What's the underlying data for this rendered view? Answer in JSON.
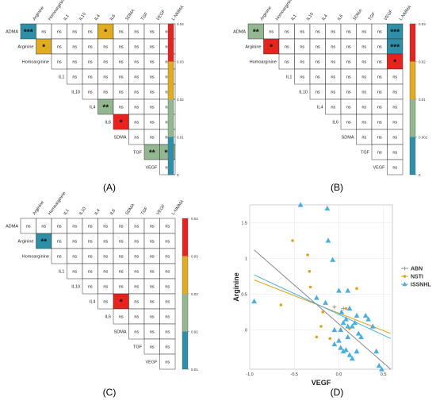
{
  "colors": {
    "teal": "#2e8fa8",
    "sage": "#93b88f",
    "gold": "#e1ad1e",
    "red": "#e8231e",
    "abn": "#8a8a8a",
    "nsti": "#e0a21c",
    "issnhl": "#4aaee0"
  },
  "panels": {
    "A": {
      "label": "(A)",
      "row_labels": [
        "ADMA",
        "Arginine",
        "Homoarginine",
        "IL1",
        "IL10",
        "IL4",
        "IL6",
        "SDMA",
        "TGF",
        "VEGF"
      ],
      "col_labels": [
        "Arginine",
        "Homoarginine",
        "IL1",
        "IL10",
        "IL4",
        "IL6",
        "SDMA",
        "TGF",
        "VEGF",
        "L-NMMA"
      ],
      "cells": [
        [
          "***",
          "ns",
          "ns",
          "ns",
          "ns",
          "*",
          "ns",
          "ns",
          "ns",
          "ns"
        ],
        [
          "*",
          "ns",
          "ns",
          "ns",
          "ns",
          "ns",
          "ns",
          "ns",
          "ns"
        ],
        [
          "ns",
          "ns",
          "ns",
          "ns",
          "ns",
          "ns",
          "ns",
          "ns"
        ],
        [
          "ns",
          "ns",
          "ns",
          "ns",
          "ns",
          "ns",
          "ns"
        ],
        [
          "ns",
          "ns",
          "ns",
          "ns",
          "ns",
          "ns"
        ],
        [
          "**",
          "ns",
          "ns",
          "ns",
          "ns"
        ],
        [
          "*",
          "ns",
          "ns",
          "ns"
        ],
        [
          "ns",
          "ns",
          "ns"
        ],
        [
          "**",
          "**"
        ],
        [
          "ns"
        ]
      ],
      "fills": [
        [
          "teal",
          "",
          "",
          "",
          "",
          "gold",
          "",
          "",
          "",
          ""
        ],
        [
          "gold",
          "",
          "",
          "",
          "",
          "",
          "",
          "",
          ""
        ],
        [
          "",
          "",
          "",
          "",
          "",
          "",
          "",
          ""
        ],
        [
          "",
          "",
          "",
          "",
          "",
          "",
          ""
        ],
        [
          "",
          "",
          "",
          "",
          "",
          ""
        ],
        [
          "sage",
          "",
          "",
          "",
          ""
        ],
        [
          "red",
          "",
          "",
          ""
        ],
        [
          "",
          "",
          ""
        ],
        [
          "sage",
          "sage"
        ],
        [
          ""
        ]
      ],
      "scale_ticks": [
        "0.04",
        "0.03",
        "0.02",
        "0.01",
        "0"
      ]
    },
    "B": {
      "label": "(B)",
      "row_labels": [
        "ADMA",
        "Arginine",
        "Homoarginine",
        "IL1",
        "IL10",
        "IL4",
        "IL6",
        "SDMA",
        "TGF",
        "VEGF"
      ],
      "col_labels": [
        "Arginine",
        "Homoarginine",
        "IL1",
        "IL10",
        "IL4",
        "IL6",
        "SDMA",
        "TGF",
        "VEGF",
        "L-NMMA"
      ],
      "cells": [
        [
          "**",
          "ns",
          "ns",
          "ns",
          "ns",
          "ns",
          "ns",
          "ns",
          "ns",
          "***"
        ],
        [
          "*",
          "ns",
          "ns",
          "ns",
          "ns",
          "ns",
          "ns",
          "ns",
          "***"
        ],
        [
          "ns",
          "ns",
          "ns",
          "ns",
          "ns",
          "ns",
          "ns",
          "*"
        ],
        [
          "ns",
          "ns",
          "ns",
          "ns",
          "ns",
          "ns",
          "ns"
        ],
        [
          "ns",
          "ns",
          "ns",
          "ns",
          "ns",
          "ns"
        ],
        [
          "ns",
          "ns",
          "ns",
          "ns",
          "ns"
        ],
        [
          "ns",
          "ns",
          "ns",
          "ns"
        ],
        [
          "ns",
          "ns",
          "ns"
        ],
        [
          "ns",
          "ns"
        ],
        [
          "ns"
        ]
      ],
      "fills": [
        [
          "sage",
          "",
          "",
          "",
          "",
          "",
          "",
          "",
          "",
          "teal"
        ],
        [
          "red",
          "",
          "",
          "",
          "",
          "",
          "",
          "",
          "teal"
        ],
        [
          "",
          "",
          "",
          "",
          "",
          "",
          "",
          "red"
        ],
        [
          "",
          "",
          "",
          "",
          "",
          "",
          ""
        ],
        [
          "",
          "",
          "",
          "",
          "",
          ""
        ],
        [
          "",
          "",
          "",
          "",
          ""
        ],
        [
          "",
          "",
          "",
          ""
        ],
        [
          "",
          "",
          ""
        ],
        [
          "",
          ""
        ],
        [
          ""
        ]
      ],
      "scale_ticks": [
        "0.03",
        "0.02",
        "0.01",
        "0.001",
        "0"
      ]
    },
    "C": {
      "label": "(C)",
      "row_labels": [
        "ADMA",
        "Arginine",
        "Homoarginine",
        "IL1",
        "IL10",
        "IL4",
        "IL6",
        "SDMA",
        "TGF",
        "VEGF"
      ],
      "col_labels": [
        "Arginine",
        "Homoarginine",
        "IL1",
        "IL10",
        "IL4",
        "IL6",
        "SDMA",
        "TGF",
        "VEGF",
        "L-NMMA"
      ],
      "cells": [
        [
          "ns",
          "ns",
          "ns",
          "ns",
          "ns",
          "ns",
          "ns",
          "ns",
          "ns",
          "ns"
        ],
        [
          "**",
          "ns",
          "ns",
          "ns",
          "ns",
          "ns",
          "ns",
          "ns",
          "ns"
        ],
        [
          "ns",
          "ns",
          "ns",
          "ns",
          "ns",
          "ns",
          "ns",
          "ns"
        ],
        [
          "ns",
          "ns",
          "ns",
          "ns",
          "ns",
          "ns",
          "ns"
        ],
        [
          "ns",
          "ns",
          "ns",
          "ns",
          "ns",
          "ns"
        ],
        [
          "ns",
          "*",
          "ns",
          "ns",
          "ns"
        ],
        [
          "ns",
          "ns",
          "ns",
          "ns"
        ],
        [
          "ns",
          "ns",
          "ns"
        ],
        [
          "ns",
          "ns"
        ],
        [
          "ns"
        ]
      ],
      "fills": [
        [
          "",
          "",
          "",
          "",
          "",
          "",
          "",
          "",
          "",
          ""
        ],
        [
          "teal",
          "",
          "",
          "",
          "",
          "",
          "",
          "",
          "",
          ""
        ],
        [
          "",
          "",
          "",
          "",
          "",
          "",
          "",
          ""
        ],
        [
          "",
          "",
          "",
          "",
          "",
          "",
          ""
        ],
        [
          "",
          "",
          "",
          "",
          "",
          ""
        ],
        [
          "",
          "red",
          "",
          "",
          ""
        ],
        [
          "",
          "",
          "",
          ""
        ],
        [
          "",
          "",
          ""
        ],
        [
          "",
          ""
        ],
        [
          ""
        ]
      ],
      "scale_ticks": [
        "0.04",
        "0.03",
        "0.02",
        "0.02",
        "0.01"
      ]
    },
    "D": {
      "label": "(D)"
    }
  },
  "chart_data": {
    "type": "scatter",
    "xlabel": "VEGF",
    "ylabel": "Arginine",
    "xlim": [
      -1.0,
      0.6
    ],
    "ylim": [
      -0.55,
      1.75
    ],
    "x_ticks": [
      "-1.0",
      "-0.5",
      "0.0",
      "0.5"
    ],
    "x_tick_values": [
      -1.0,
      -0.5,
      0.0,
      0.5
    ],
    "y_ticks": [
      "1.5",
      "1",
      "0.5",
      "0"
    ],
    "y_tick_values": [
      1.5,
      1.0,
      0.5,
      0.0
    ],
    "series": [
      {
        "name": "ABN",
        "marker": "plus",
        "color": "#8a8a8a",
        "x": [
          -0.05,
          0.05
        ],
        "y": [
          0.32,
          0.3
        ],
        "fit": {
          "x": [
            -0.95,
            0.58
          ],
          "y": [
            1.12,
            -0.55
          ]
        }
      },
      {
        "name": "NSTI",
        "marker": "circle",
        "color": "#e0a21c",
        "x": [
          -0.52,
          -0.65,
          -0.35,
          -0.33,
          -0.32,
          -0.18,
          -0.2,
          -0.25,
          -0.1,
          0.12,
          0.08,
          0.2
        ],
        "y": [
          1.25,
          0.35,
          1.05,
          0.82,
          0.6,
          0.25,
          0.05,
          -0.1,
          -0.12,
          0.02,
          0.3,
          0.58
        ],
        "fit": {
          "x": [
            -0.95,
            0.58
          ],
          "y": [
            0.7,
            -0.05
          ]
        }
      },
      {
        "name": "ISSNHL",
        "marker": "triangle",
        "color": "#4aaee0",
        "x": [
          -0.95,
          -0.43,
          -0.13,
          -0.12,
          -0.07,
          -0.25,
          -0.15,
          0.0,
          0.03,
          0.05,
          0.08,
          0.1,
          0.12,
          0.15,
          0.18,
          0.1,
          0.2,
          0.22,
          0.25,
          0.3,
          0.33,
          0.38,
          0.42,
          0.45,
          0.48,
          -0.05,
          0.0,
          0.02,
          0.05,
          0.08,
          0.1,
          0.12,
          0.15,
          0.2,
          -0.05,
          0.02
        ],
        "y": [
          0.4,
          1.75,
          1.7,
          1.25,
          0.98,
          0.45,
          0.38,
          0.55,
          0.25,
          0.1,
          0.15,
          0.05,
          0.3,
          0.05,
          0.1,
          0.55,
          0.2,
          -0.05,
          -0.1,
          0.2,
          0.15,
          0.05,
          -0.3,
          -0.5,
          -0.55,
          -0.2,
          -0.15,
          -0.25,
          -0.3,
          -0.28,
          -0.1,
          -0.35,
          -0.4,
          -0.3,
          0.0,
          0.0
        ],
        "fit": {
          "x": [
            -0.95,
            0.58
          ],
          "y": [
            0.77,
            -0.12
          ]
        }
      }
    ],
    "legend": {
      "placement": "right",
      "entries": [
        "ABN",
        "NSTI",
        "ISSNHL"
      ]
    },
    "grid": true
  }
}
